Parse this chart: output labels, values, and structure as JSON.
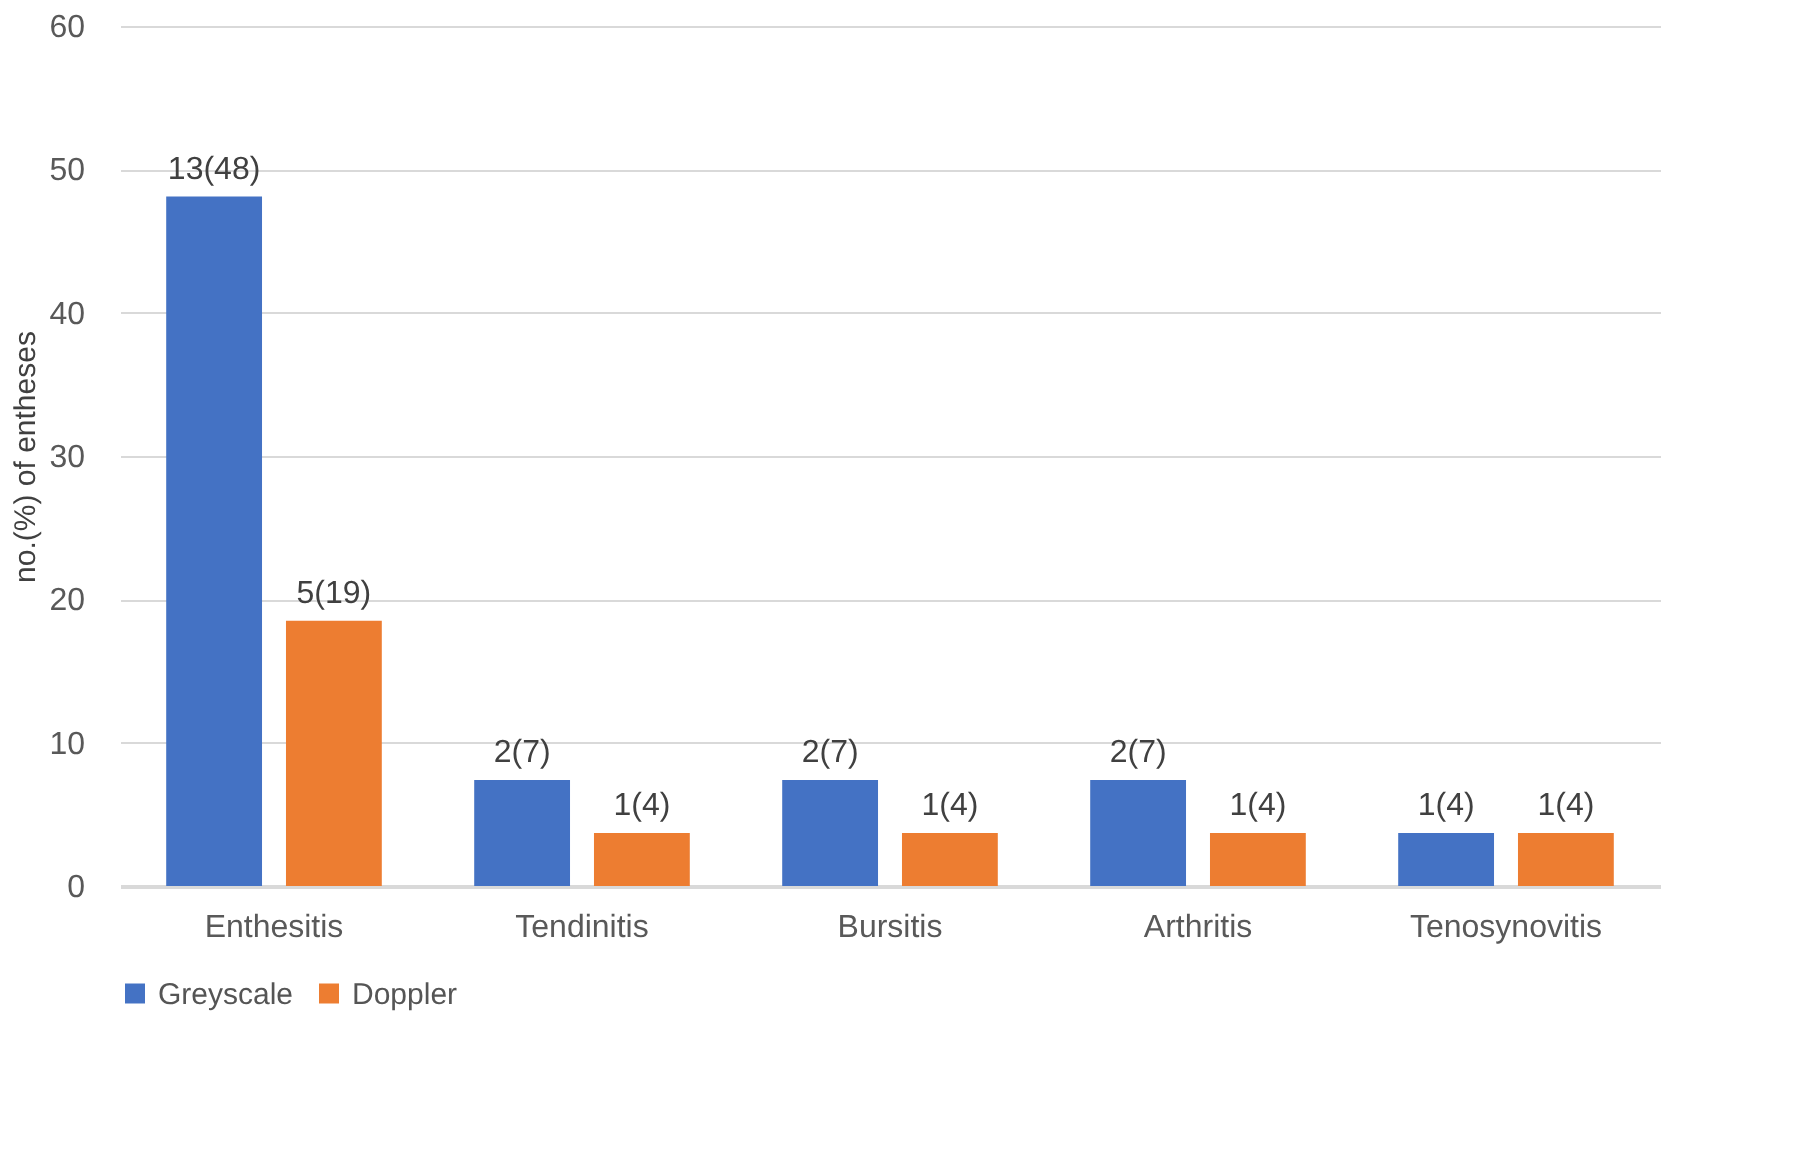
{
  "chart_data": {
    "type": "bar",
    "ylabel": "no.(%) of entheses",
    "categories": [
      "Enthesitis",
      "Tendinitis",
      "Bursitis",
      "Arthritis",
      "Tenosynovitis"
    ],
    "series": [
      {
        "name": "Greyscale",
        "color": "#4472c4",
        "values": [
          48.1,
          7.4,
          7.4,
          7.4,
          3.7
        ],
        "value_labels": [
          "13(48)",
          "2(7)",
          "2(7)",
          "2(7)",
          "1(4)"
        ]
      },
      {
        "name": "Doppler",
        "color": "#ed7d31",
        "values": [
          18.5,
          3.7,
          3.7,
          3.7,
          3.7
        ],
        "value_labels": [
          "5(19)",
          "1(4)",
          "1(4)",
          "1(4)",
          "1(4)"
        ]
      }
    ],
    "ylim": [
      0,
      60
    ],
    "yticks": [
      0,
      10,
      20,
      30,
      40,
      50,
      60
    ],
    "grid": "y",
    "legend": "bottom"
  }
}
